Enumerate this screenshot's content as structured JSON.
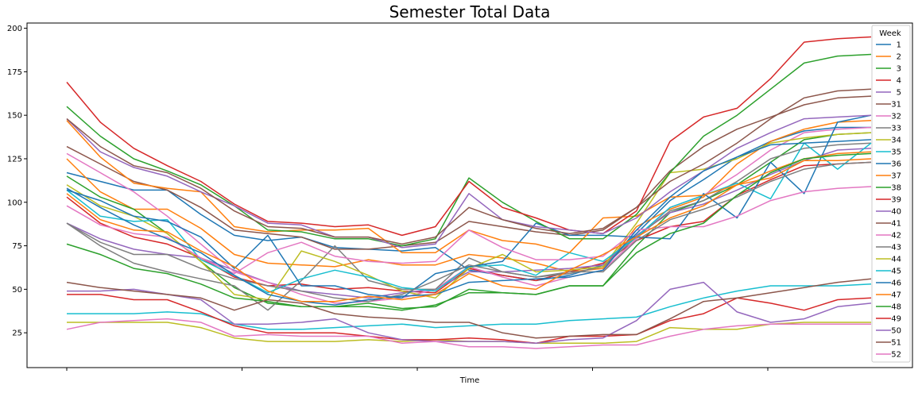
{
  "chart_data": {
    "type": "line",
    "title": "Semester Total Data",
    "xlabel": "Time",
    "ylabel": "",
    "ylim": [
      5,
      203
    ],
    "yticks": [
      25,
      50,
      75,
      100,
      125,
      150,
      175,
      200
    ],
    "x_tick_count": 6,
    "x_count": 25,
    "grid": false,
    "legend": {
      "title": "Week",
      "placement": "right"
    },
    "series": [
      {
        "name": "1",
        "color": "#1f77b4",
        "values": [
          117,
          112,
          107,
          107,
          93,
          81,
          78,
          80,
          74,
          73,
          72,
          74,
          61,
          58,
          55,
          58,
          64,
          82,
          101,
          113,
          126,
          135,
          141,
          143,
          143
        ]
      },
      {
        "name": "2",
        "color": "#ff7f0e",
        "values": [
          125,
          106,
          96,
          96,
          85,
          70,
          65,
          64,
          63,
          67,
          64,
          64,
          70,
          68,
          65,
          60,
          62,
          86,
          96,
          103,
          122,
          135,
          142,
          146,
          147
        ]
      },
      {
        "name": "3",
        "color": "#2ca02c",
        "values": [
          115,
          103,
          96,
          82,
          66,
          51,
          42,
          40,
          40,
          40,
          38,
          41,
          48,
          48,
          47,
          52,
          52,
          75,
          94,
          101,
          110,
          123,
          136,
          139,
          140
        ]
      },
      {
        "name": "4",
        "color": "#d62728",
        "values": [
          103,
          88,
          80,
          76,
          68,
          57,
          52,
          53,
          50,
          51,
          49,
          48,
          62,
          58,
          55,
          60,
          65,
          78,
          86,
          89,
          104,
          113,
          121,
          122,
          123
        ]
      },
      {
        "name": "5",
        "color": "#9467bd",
        "values": [
          88,
          79,
          73,
          70,
          68,
          61,
          54,
          49,
          47,
          45,
          48,
          50,
          60,
          60,
          61,
          62,
          64,
          81,
          94,
          99,
          107,
          116,
          124,
          130,
          131
        ]
      },
      {
        "name": "31",
        "color": "#8c564b",
        "values": [
          132,
          122,
          112,
          107,
          97,
          84,
          82,
          80,
          73,
          73,
          75,
          77,
          89,
          86,
          83,
          81,
          84,
          97,
          118,
          132,
          142,
          149,
          156,
          160,
          161
        ]
      },
      {
        "name": "32",
        "color": "#e377c2",
        "values": [
          128,
          117,
          106,
          92,
          76,
          60,
          54,
          47,
          42,
          43,
          45,
          50,
          63,
          57,
          52,
          57,
          61,
          79,
          97,
          104,
          116,
          130,
          140,
          142,
          143
        ]
      },
      {
        "name": "33",
        "color": "#7f7f7f",
        "values": [
          88,
          75,
          65,
          60,
          56,
          52,
          38,
          55,
          75,
          55,
          50,
          50,
          68,
          60,
          57,
          59,
          63,
          80,
          95,
          101,
          112,
          125,
          131,
          133,
          134
        ]
      },
      {
        "name": "34",
        "color": "#bcbd22",
        "values": [
          110,
          98,
          92,
          82,
          66,
          47,
          44,
          72,
          66,
          58,
          49,
          45,
          62,
          70,
          60,
          61,
          63,
          88,
          117,
          119,
          125,
          134,
          137,
          139,
          140
        ]
      },
      {
        "name": "35",
        "color": "#17becf",
        "values": [
          107,
          92,
          89,
          90,
          67,
          58,
          48,
          56,
          61,
          57,
          51,
          49,
          63,
          64,
          58,
          71,
          66,
          80,
          97,
          104,
          111,
          102,
          134,
          119,
          134
        ]
      },
      {
        "name": "36",
        "color": "#1f77b4",
        "values": [
          107,
          101,
          92,
          89,
          80,
          62,
          81,
          52,
          52,
          47,
          45,
          59,
          63,
          66,
          88,
          81,
          81,
          80,
          79,
          105,
          91,
          123,
          105,
          146,
          150
        ]
      },
      {
        "name": "37",
        "color": "#ff7f0e",
        "values": [
          147,
          126,
          111,
          108,
          106,
          86,
          83,
          84,
          84,
          85,
          71,
          71,
          84,
          78,
          76,
          71,
          91,
          92,
          103,
          104,
          110,
          114,
          124,
          124,
          125
        ]
      },
      {
        "name": "38",
        "color": "#2ca02c",
        "values": [
          155,
          138,
          125,
          118,
          110,
          98,
          84,
          83,
          79,
          79,
          75,
          79,
          114,
          100,
          89,
          79,
          79,
          93,
          117,
          138,
          150,
          165,
          180,
          184,
          185
        ]
      },
      {
        "name": "39",
        "color": "#d62728",
        "values": [
          169,
          146,
          131,
          121,
          112,
          99,
          89,
          88,
          86,
          87,
          81,
          86,
          112,
          97,
          91,
          84,
          82,
          95,
          135,
          149,
          154,
          171,
          192,
          194,
          195
        ]
      },
      {
        "name": "40",
        "color": "#9467bd",
        "values": [
          148,
          129,
          120,
          115,
          106,
          98,
          88,
          87,
          80,
          80,
          74,
          76,
          105,
          90,
          86,
          84,
          82,
          91,
          106,
          118,
          131,
          140,
          148,
          149,
          150
        ]
      },
      {
        "name": "41",
        "color": "#8c564b",
        "values": [
          148,
          132,
          121,
          117,
          108,
          95,
          86,
          85,
          80,
          80,
          76,
          80,
          97,
          90,
          85,
          82,
          85,
          97,
          112,
          122,
          134,
          148,
          160,
          164,
          165
        ]
      },
      {
        "name": "42",
        "color": "#e377c2",
        "values": [
          98,
          87,
          82,
          80,
          68,
          59,
          71,
          77,
          69,
          66,
          65,
          66,
          84,
          74,
          67,
          67,
          69,
          84,
          86,
          86,
          92,
          101,
          106,
          108,
          109
        ]
      },
      {
        "name": "43",
        "color": "#7f7f7f",
        "values": [
          88,
          77,
          70,
          70,
          62,
          56,
          52,
          49,
          45,
          43,
          47,
          55,
          64,
          60,
          57,
          60,
          60,
          78,
          90,
          96,
          103,
          112,
          119,
          122,
          123
        ]
      },
      {
        "name": "44",
        "color": "#bcbd22",
        "values": [
          31,
          31,
          31,
          31,
          28,
          22,
          20,
          20,
          20,
          21,
          20,
          21,
          20,
          20,
          19,
          19,
          19,
          20,
          28,
          27,
          27,
          30,
          31,
          31,
          31
        ]
      },
      {
        "name": "45",
        "color": "#17becf",
        "values": [
          36,
          36,
          36,
          37,
          36,
          30,
          27,
          27,
          28,
          29,
          30,
          28,
          29,
          30,
          30,
          32,
          33,
          34,
          40,
          45,
          49,
          52,
          52,
          52,
          53
        ]
      },
      {
        "name": "46",
        "color": "#1f77b4",
        "values": [
          108,
          97,
          87,
          79,
          71,
          58,
          47,
          43,
          41,
          44,
          46,
          47,
          54,
          55,
          56,
          57,
          61,
          84,
          103,
          118,
          126,
          133,
          134,
          135,
          136
        ]
      },
      {
        "name": "47",
        "color": "#ff7f0e",
        "values": [
          105,
          90,
          84,
          83,
          72,
          63,
          49,
          43,
          43,
          46,
          44,
          47,
          59,
          52,
          50,
          61,
          70,
          80,
          91,
          98,
          110,
          118,
          125,
          128,
          129
        ]
      },
      {
        "name": "48",
        "color": "#2ca02c",
        "values": [
          76,
          70,
          62,
          59,
          53,
          45,
          43,
          40,
          40,
          42,
          39,
          40,
          50,
          48,
          47,
          52,
          52,
          71,
          82,
          88,
          104,
          117,
          125,
          127,
          128
        ]
      },
      {
        "name": "49",
        "color": "#d62728",
        "values": [
          47,
          47,
          44,
          44,
          37,
          29,
          25,
          25,
          25,
          23,
          21,
          21,
          22,
          21,
          19,
          23,
          23,
          24,
          32,
          36,
          45,
          42,
          38,
          44,
          45
        ]
      },
      {
        "name": "50",
        "color": "#9467bd",
        "values": [
          49,
          49,
          50,
          47,
          44,
          30,
          30,
          31,
          33,
          25,
          21,
          20,
          20,
          20,
          19,
          21,
          22,
          32,
          50,
          54,
          37,
          31,
          33,
          40,
          42
        ]
      },
      {
        "name": "51",
        "color": "#8c564b",
        "values": [
          54,
          51,
          49,
          47,
          45,
          38,
          44,
          42,
          36,
          34,
          33,
          31,
          31,
          25,
          22,
          23,
          24,
          24,
          33,
          43,
          45,
          48,
          51,
          54,
          56
        ]
      },
      {
        "name": "52",
        "color": "#e377c2",
        "values": [
          27,
          31,
          32,
          33,
          31,
          23,
          24,
          23,
          23,
          23,
          19,
          20,
          17,
          17,
          16,
          17,
          18,
          18,
          23,
          27,
          29,
          30,
          30,
          30,
          30
        ]
      }
    ]
  }
}
